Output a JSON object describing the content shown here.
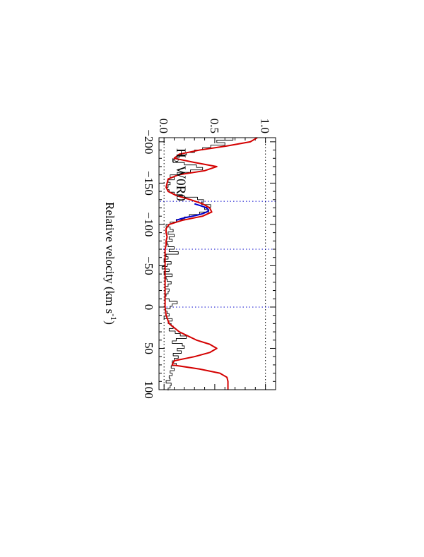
{
  "chart_data": {
    "type": "line",
    "xlabel": "Relative velocity (km s",
    "xlabel_sup": "-1",
    "xlabel_close": ")",
    "ylabel": "",
    "annotation": {
      "species": "H",
      "subscript": "2",
      "label": "W0R0"
    },
    "xlim": [
      -205,
      100
    ],
    "ylim": [
      -0.05,
      1.1
    ],
    "x_ticks": [
      -200,
      -150,
      -100,
      -50,
      0,
      50,
      100
    ],
    "x_tick_labels": [
      "−200",
      "−150",
      "−100",
      "−50",
      "0",
      "50",
      "100"
    ],
    "y_ticks": [
      0.0,
      0.5,
      1.0
    ],
    "y_tick_labels": [
      "0.0",
      "0.5",
      "1.0"
    ],
    "continuum_level": 1.0,
    "zero_level": 0.0,
    "component_velocities": [
      -128,
      -70,
      0
    ],
    "colors": {
      "data": "#000000",
      "model": "#d40000",
      "component": "#0000cc",
      "reference": "#0000cc"
    },
    "series": [
      {
        "name": "",
        "style": "step",
        "color": "#000000",
        "x": [
          -205,
          -202,
          -199,
          -196,
          -193,
          -190,
          -187,
          -184,
          -181,
          -178,
          -175,
          -172,
          -169,
          -166,
          -163,
          -160,
          -157,
          -154,
          -151,
          -148,
          -145,
          -142,
          -139,
          -136,
          -133,
          -130,
          -127,
          -124,
          -121,
          -118,
          -115,
          -112,
          -109,
          -106,
          -103,
          -100,
          -97,
          -94,
          -91,
          -88,
          -85,
          -82,
          -79,
          -76,
          -73,
          -70,
          -67,
          -64,
          -61,
          -58,
          -55,
          -52,
          -49,
          -46,
          -43,
          -40,
          -37,
          -34,
          -31,
          -28,
          -25,
          -22,
          -19,
          -16,
          -13,
          -10,
          -7,
          -4,
          -1,
          2,
          5,
          8,
          11,
          14,
          17,
          20,
          23,
          26,
          29,
          32,
          35,
          38,
          41,
          44,
          47,
          50,
          53,
          56,
          59,
          62,
          65,
          68,
          71,
          74,
          77,
          80,
          83,
          86,
          89,
          92,
          95,
          98
        ],
        "y": [
          0.68,
          0.52,
          0.6,
          0.46,
          0.38,
          0.3,
          0.22,
          0.15,
          0.1,
          0.09,
          0.2,
          0.32,
          0.38,
          0.26,
          0.13,
          0.06,
          0.1,
          0.04,
          0.06,
          0.04,
          0.03,
          0.05,
          0.1,
          0.18,
          0.33,
          0.39,
          0.37,
          0.46,
          0.4,
          0.44,
          0.35,
          0.25,
          0.2,
          0.12,
          0.06,
          0.02,
          0.06,
          0.09,
          0.04,
          0.1,
          0.05,
          0.08,
          0.03,
          0.04,
          0.1,
          0.05,
          0.14,
          0.02,
          0.04,
          0.0,
          0.07,
          0.03,
          -0.02,
          0.05,
          0.0,
          0.08,
          0.02,
          0.03,
          0.07,
          0.04,
          0.01,
          0.05,
          0.04,
          0.02,
          0.01,
          0.05,
          0.13,
          0.08,
          0.06,
          0.01,
          0.03,
          0.05,
          0.0,
          0.08,
          0.04,
          0.07,
          0.09,
          0.05,
          0.11,
          0.16,
          0.22,
          0.12,
          0.08,
          0.18,
          0.2,
          0.13,
          0.17,
          0.09,
          0.14,
          0.1,
          0.08,
          0.12,
          0.07,
          0.1,
          0.06,
          0.08,
          0.05,
          0.06,
          0.02,
          0.07,
          0.06,
          0.04
        ]
      },
      {
        "name": "",
        "style": "line",
        "color": "#0000cc",
        "x": [
          -125,
          -123,
          -121,
          -119,
          -117,
          -115,
          -113,
          -111,
          -109,
          -107,
          -105
        ],
        "y": [
          0.3,
          0.35,
          0.4,
          0.43,
          0.44,
          0.42,
          0.38,
          0.32,
          0.24,
          0.17,
          0.12
        ]
      },
      {
        "name": "",
        "style": "line",
        "color": "#d40000",
        "x": [
          -205,
          -200,
          -195,
          -190,
          -185,
          -180,
          -175,
          -170,
          -165,
          -160,
          -155,
          -150,
          -145,
          -140,
          -135,
          -130,
          -125,
          -120,
          -115,
          -110,
          -105,
          -100,
          -95,
          -90,
          -85,
          -80,
          -75,
          -70,
          -60,
          -50,
          -40,
          -30,
          -20,
          -10,
          0,
          10,
          20,
          30,
          40,
          45,
          50,
          55,
          60,
          65,
          70,
          75,
          80,
          85,
          90,
          95,
          100
        ],
        "y": [
          0.92,
          0.85,
          0.62,
          0.35,
          0.15,
          0.1,
          0.3,
          0.52,
          0.4,
          0.14,
          0.04,
          0.03,
          0.02,
          0.04,
          0.12,
          0.26,
          0.38,
          0.45,
          0.47,
          0.38,
          0.18,
          0.05,
          0.02,
          0.02,
          0.03,
          0.02,
          0.02,
          0.01,
          0.01,
          0.01,
          0.01,
          0.01,
          0.01,
          0.01,
          0.01,
          0.02,
          0.05,
          0.15,
          0.32,
          0.45,
          0.52,
          0.45,
          0.3,
          0.1,
          0.08,
          0.35,
          0.55,
          0.62,
          0.63,
          0.63,
          0.63
        ]
      }
    ]
  }
}
